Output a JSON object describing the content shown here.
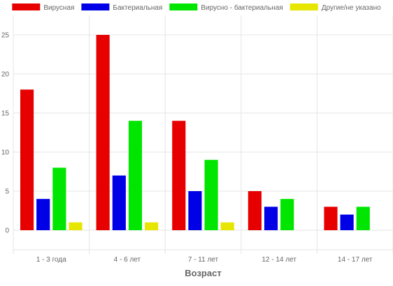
{
  "chart_data": {
    "type": "bar",
    "categories": [
      "1 - 3 года",
      "4 - 6 лет",
      "7 - 11 лет",
      "12 - 14 лет",
      "14 - 17 лет"
    ],
    "series": [
      {
        "name": "Вирусная",
        "color": "#e60000",
        "values": [
          18,
          25,
          14,
          5,
          3
        ]
      },
      {
        "name": "Бактериальная",
        "color": "#0000e6",
        "values": [
          4,
          7,
          5,
          3,
          2
        ]
      },
      {
        "name": "Вирусно - бактериальная",
        "color": "#00e600",
        "values": [
          8,
          14,
          9,
          4,
          3
        ]
      },
      {
        "name": "Другие/не указано",
        "color": "#e6e600",
        "values": [
          1,
          1,
          1,
          null,
          null
        ]
      }
    ],
    "title": "",
    "xlabel": "Возраст",
    "ylabel": "",
    "ylim": [
      -2.5,
      27.5
    ],
    "yticks": [
      0,
      5,
      10,
      15,
      20,
      25
    ],
    "grid": true,
    "legend_position": "top-center"
  }
}
